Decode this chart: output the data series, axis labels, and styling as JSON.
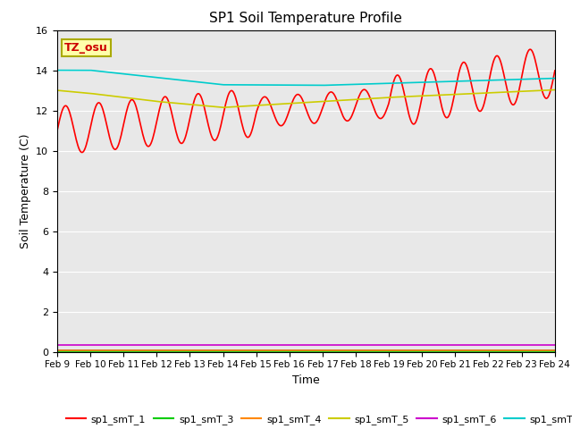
{
  "title": "SP1 Soil Temperature Profile",
  "xlabel": "Time",
  "ylabel": "Soil Temperature (C)",
  "annotation": "TZ_osu",
  "ylim": [
    0,
    16
  ],
  "xlim": [
    0,
    15
  ],
  "x_tick_labels": [
    "Feb 9",
    "Feb 10",
    "Feb 11",
    "Feb 12",
    "Feb 13",
    "Feb 14",
    "Feb 15",
    "Feb 16",
    "Feb 17",
    "Feb 18",
    "Feb 19",
    "Feb 20",
    "Feb 21",
    "Feb 22",
    "Feb 23",
    "Feb 24"
  ],
  "background_color": "#e8e8e8",
  "series": {
    "sp1_smT_1": {
      "color": "#ff0000",
      "linewidth": 1.2
    },
    "sp1_smT_2": {
      "color": "#0000cc",
      "linewidth": 1.2
    },
    "sp1_smT_3": {
      "color": "#00cc00",
      "linewidth": 1.2
    },
    "sp1_smT_4": {
      "color": "#ff8800",
      "linewidth": 1.2
    },
    "sp1_smT_5": {
      "color": "#cccc00",
      "linewidth": 1.2
    },
    "sp1_smT_6": {
      "color": "#cc00cc",
      "linewidth": 1.2
    },
    "sp1_smT_7": {
      "color": "#00cccc",
      "linewidth": 1.2
    }
  }
}
